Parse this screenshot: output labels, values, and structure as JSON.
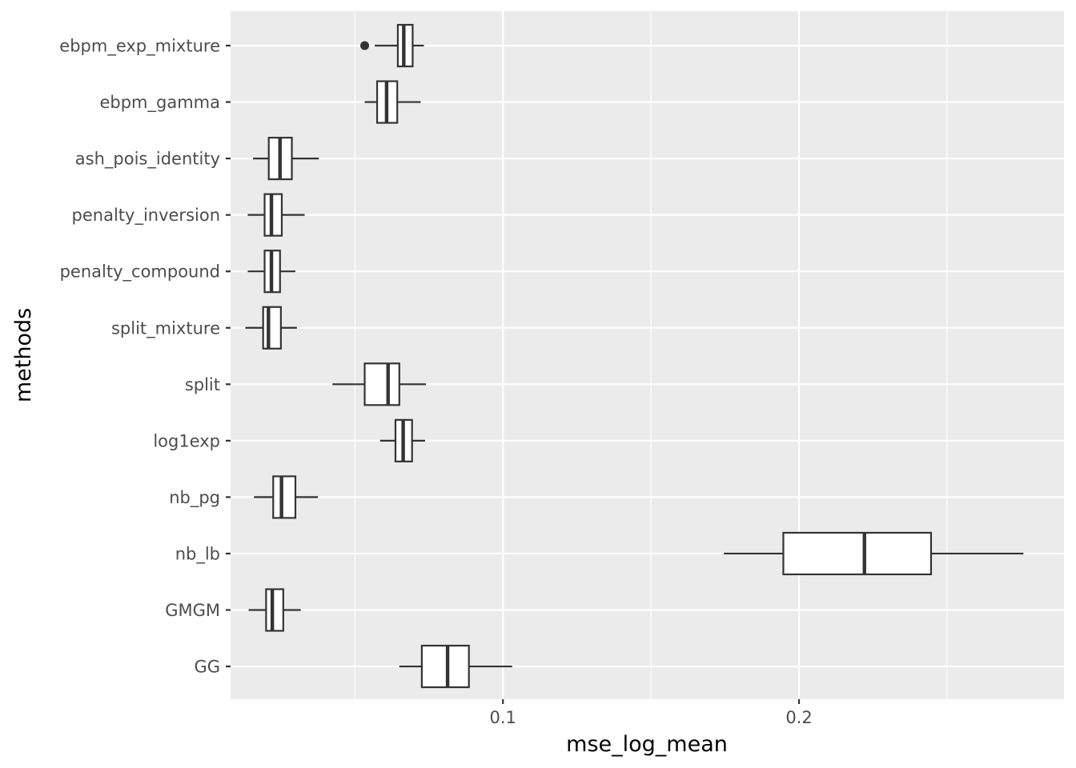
{
  "chart_data": {
    "type": "boxplot",
    "orientation": "horizontal",
    "xlabel": "mse_log_mean",
    "ylabel": "methods",
    "xlim": [
      0.008,
      0.2895
    ],
    "xticks": [
      0.1,
      0.2
    ],
    "xtick_labels": [
      "0.1",
      "0.2"
    ],
    "grid": true,
    "colors": {
      "panel_bg": "#ebebeb",
      "grid": "#ffffff",
      "box_fill": "#ffffff",
      "box_stroke": "#333333",
      "tick": "#333333"
    },
    "categories": [
      "ebpm_exp_mixture",
      "ebpm_gamma",
      "ash_pois_identity",
      "penalty_inversion",
      "penalty_compound",
      "split_mixture",
      "split",
      "log1exp",
      "nb_pg",
      "nb_lb",
      "GMGM",
      "GG"
    ],
    "boxes": [
      {
        "method": "ebpm_exp_mixture",
        "whisker_low": 0.0567,
        "q1": 0.0645,
        "median": 0.0665,
        "q3": 0.0695,
        "whisker_high": 0.0733,
        "outliers": [
          0.0533
        ]
      },
      {
        "method": "ebpm_gamma",
        "whisker_low": 0.0533,
        "q1": 0.0575,
        "median": 0.0607,
        "q3": 0.0643,
        "whisker_high": 0.0722,
        "outliers": []
      },
      {
        "method": "ash_pois_identity",
        "whisker_low": 0.0156,
        "q1": 0.0209,
        "median": 0.0247,
        "q3": 0.0287,
        "whisker_high": 0.0378,
        "outliers": []
      },
      {
        "method": "penalty_inversion",
        "whisker_low": 0.0138,
        "q1": 0.0195,
        "median": 0.0218,
        "q3": 0.0253,
        "whisker_high": 0.033,
        "outliers": []
      },
      {
        "method": "penalty_compound",
        "whisker_low": 0.0138,
        "q1": 0.0195,
        "median": 0.0218,
        "q3": 0.0247,
        "whisker_high": 0.0299,
        "outliers": []
      },
      {
        "method": "split_mixture",
        "whisker_low": 0.013,
        "q1": 0.019,
        "median": 0.0208,
        "q3": 0.025,
        "whisker_high": 0.0304,
        "outliers": []
      },
      {
        "method": "split",
        "whisker_low": 0.0424,
        "q1": 0.0533,
        "median": 0.0612,
        "q3": 0.065,
        "whisker_high": 0.074,
        "outliers": []
      },
      {
        "method": "log1exp",
        "whisker_low": 0.0585,
        "q1": 0.0637,
        "median": 0.0663,
        "q3": 0.0693,
        "whisker_high": 0.0737,
        "outliers": []
      },
      {
        "method": "nb_pg",
        "whisker_low": 0.0159,
        "q1": 0.0224,
        "median": 0.0252,
        "q3": 0.0299,
        "whisker_high": 0.0375,
        "outliers": []
      },
      {
        "method": "nb_lb",
        "whisker_low": 0.1746,
        "q1": 0.1947,
        "median": 0.2221,
        "q3": 0.2446,
        "whisker_high": 0.2758,
        "outliers": []
      },
      {
        "method": "GMGM",
        "whisker_low": 0.0141,
        "q1": 0.02,
        "median": 0.0221,
        "q3": 0.0258,
        "whisker_high": 0.0317,
        "outliers": []
      },
      {
        "method": "GG",
        "whisker_low": 0.065,
        "q1": 0.0726,
        "median": 0.0813,
        "q3": 0.0885,
        "whisker_high": 0.1031,
        "outliers": []
      }
    ]
  }
}
